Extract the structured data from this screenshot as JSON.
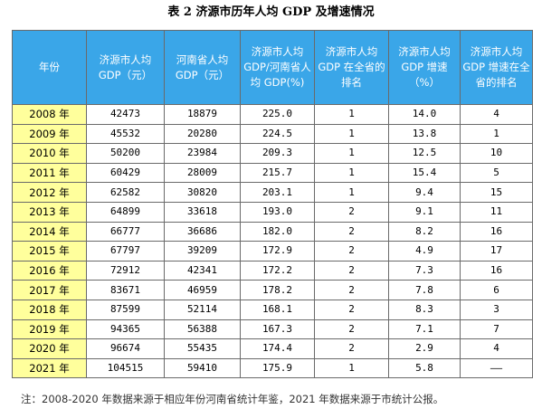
{
  "title": "表 2 济源市历年人均 GDP 及增速情况",
  "headers": [
    "年份",
    "济源市人均 GDP（元）",
    "河南省人均 GDP（元）",
    "济源市人均 GDP/河南省人均 GDP(%)",
    "济源市人均 GDP 在全省的排名",
    "济源市人均 GDP 增速（%）",
    "济源市人均 GDP 增速在全省的排名"
  ],
  "rows": [
    [
      "2008 年",
      "42473",
      "18879",
      "225.0",
      "1",
      "14.0",
      "4"
    ],
    [
      "2009 年",
      "45532",
      "20280",
      "224.5",
      "1",
      "13.8",
      "1"
    ],
    [
      "2010 年",
      "50200",
      "23984",
      "209.3",
      "1",
      "12.5",
      "10"
    ],
    [
      "2011 年",
      "60429",
      "28009",
      "215.7",
      "1",
      "15.4",
      "5"
    ],
    [
      "2012 年",
      "62582",
      "30820",
      "203.1",
      "1",
      "9.4",
      "15"
    ],
    [
      "2013 年",
      "64899",
      "33618",
      "193.0",
      "2",
      "9.1",
      "11"
    ],
    [
      "2014 年",
      "66777",
      "36686",
      "182.0",
      "2",
      "8.2",
      "16"
    ],
    [
      "2015 年",
      "67797",
      "39209",
      "172.9",
      "2",
      "4.9",
      "17"
    ],
    [
      "2016 年",
      "72912",
      "42341",
      "172.2",
      "2",
      "7.3",
      "16"
    ],
    [
      "2017 年",
      "83671",
      "46959",
      "178.2",
      "2",
      "7.8",
      "6"
    ],
    [
      "2018 年",
      "87599",
      "52114",
      "168.1",
      "2",
      "8.3",
      "3"
    ],
    [
      "2019 年",
      "94365",
      "56388",
      "167.3",
      "2",
      "7.1",
      "7"
    ],
    [
      "2020 年",
      "96674",
      "55435",
      "174.4",
      "2",
      "2.9",
      "4"
    ],
    [
      "2021 年",
      "104515",
      "59410",
      "175.9",
      "1",
      "5.8",
      "——"
    ]
  ],
  "note": "注：2008-2020 年数据来源于相应年份河南省统计年鉴，2021 年数据来源于市统计公报。",
  "colors": {
    "header_bg": "#3aa6e8",
    "year_bg": "#ffff9c"
  }
}
